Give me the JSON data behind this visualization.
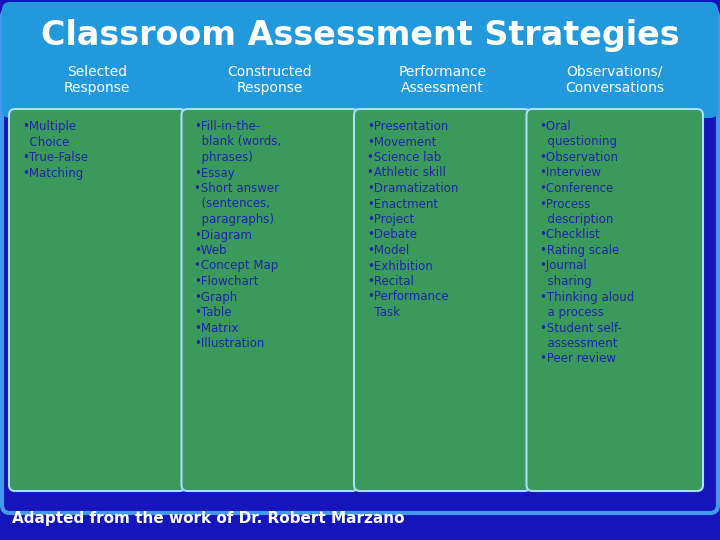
{
  "title": "Classroom Assessment Strategies",
  "title_fontsize": 24,
  "title_color": "#FFFFFF",
  "bg_color": "#1515BB",
  "header_bg_color": "#2299DD",
  "box_bg_color": "#3A9A5C",
  "text_color": "#2222AA",
  "header_text_color": "#FFFFFF",
  "footer_text": "Adapted from the work of Dr. Robert Marzano",
  "footer_color": "#FFFFFF",
  "footer_fontsize": 11,
  "col_header_fontsize": 10,
  "item_fontsize": 8.5,
  "columns": [
    {
      "header": "Selected\nResponse",
      "items": "•Multiple\n  Choice\n•True-False\n•Matching"
    },
    {
      "header": "Constructed\nResponse",
      "items": "•Fill-in-the-\n  blank (words,\n  phrases)\n•Essay\n•Short answer\n  (sentences,\n  paragraphs)\n•Diagram\n•Web\n•Concept Map\n•Flowchart\n•Graph\n•Table\n•Matrix\n•Illustration"
    },
    {
      "header": "Performance\nAssessment",
      "items": "•Presentation\n•Movement\n•Science lab\n•Athletic skill\n•Dramatization\n•Enactment\n•Project\n•Debate\n•Model\n•Exhibition\n•Recital\n•Performance\n  Task"
    },
    {
      "header": "Observations/\nConversations",
      "items": "•Oral\n  questioning\n•Observation\n•Interview\n•Conference\n•Process\n  description\n•Checklist\n•Rating scale\n•Journal\n  sharing\n•Thinking aloud\n  a process\n•Student self-\n  assessment\n•Peer review"
    }
  ]
}
